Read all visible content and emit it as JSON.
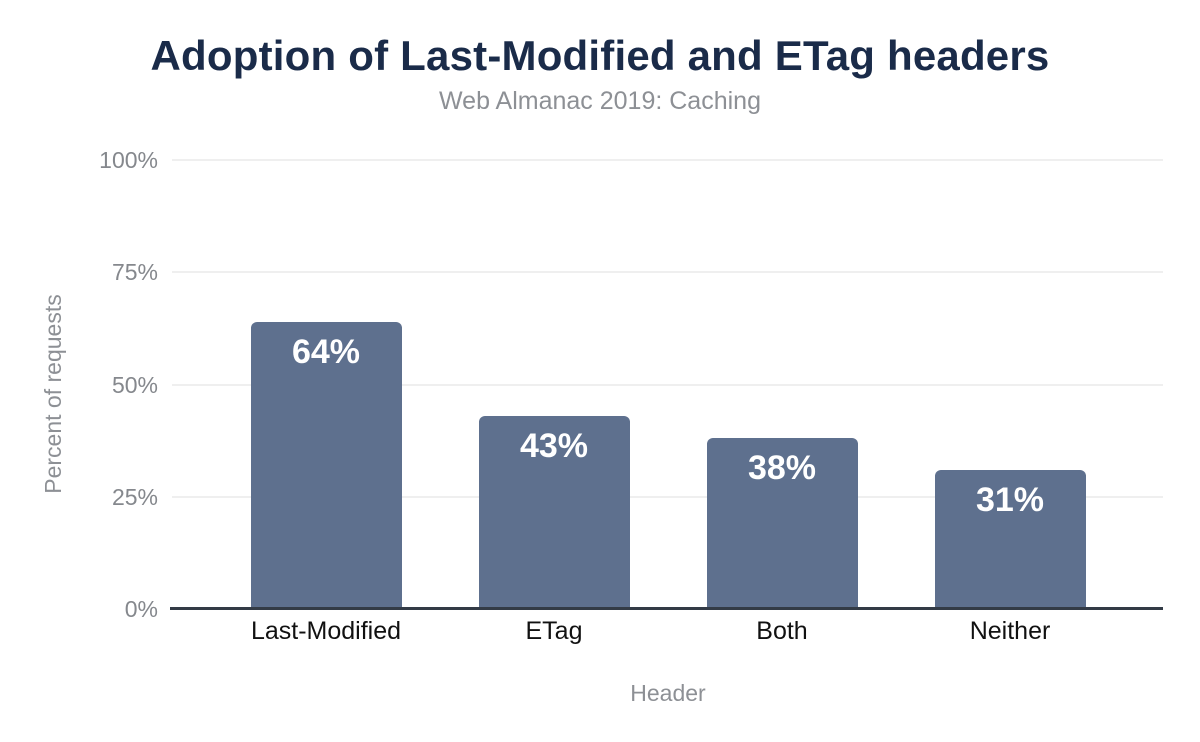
{
  "header": {
    "title": "Adoption of Last-Modified and ETag headers",
    "subtitle": "Web Almanac 2019: Caching"
  },
  "chart_data": {
    "type": "bar",
    "title": "Adoption of Last-Modified and ETag headers",
    "subtitle": "Web Almanac 2019: Caching",
    "categories": [
      "Last-Modified",
      "ETag",
      "Both",
      "Neither"
    ],
    "values": [
      64,
      43,
      38,
      31
    ],
    "value_labels": [
      "64%",
      "43%",
      "38%",
      "31%"
    ],
    "xlabel": "Header",
    "ylabel": "Percent of requests",
    "ylim": [
      0,
      100
    ],
    "yticks": [
      {
        "value": 100,
        "label": "100%"
      },
      {
        "value": 75,
        "label": "75%"
      },
      {
        "value": 50,
        "label": "50%"
      },
      {
        "value": 25,
        "label": "25%"
      },
      {
        "value": 0,
        "label": "0%"
      }
    ],
    "grid": true,
    "legend": "none",
    "colors": {
      "bar": "#5e708e",
      "bar_value_label": "#ffffff",
      "title": "#1a2b49",
      "subtitle": "#8d9095",
      "tick_label": "#85888d",
      "category_label": "#111111",
      "gridline": "#efefef",
      "axis_line": "#333b46",
      "background": "#ffffff"
    }
  }
}
